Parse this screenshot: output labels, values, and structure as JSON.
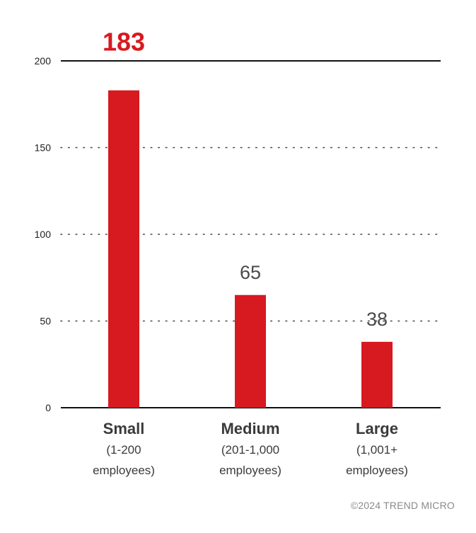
{
  "chart_data": {
    "type": "bar",
    "categories": [
      {
        "name": "Small",
        "sub1": "(1-200",
        "sub2": "employees)"
      },
      {
        "name": "Medium",
        "sub1": "(201-1,000",
        "sub2": "employees)"
      },
      {
        "name": "Large",
        "sub1": "(1,001+",
        "sub2": "employees)"
      }
    ],
    "values": [
      183,
      65,
      38
    ],
    "value_labels": [
      "183",
      "65",
      "38"
    ],
    "yticks": [
      0,
      50,
      100,
      150,
      200
    ],
    "ylim": [
      0,
      200
    ],
    "grid": "dotted",
    "title": "",
    "xlabel": "",
    "ylabel": ""
  },
  "colors": {
    "bar": "#d71920",
    "highlight_label": "#d71920",
    "label": "#4a4a4a",
    "axis": "#111111",
    "grid": "#444444",
    "category": "#3a3a3a"
  },
  "footer": {
    "copyright": "©2024 TREND MICRO"
  }
}
